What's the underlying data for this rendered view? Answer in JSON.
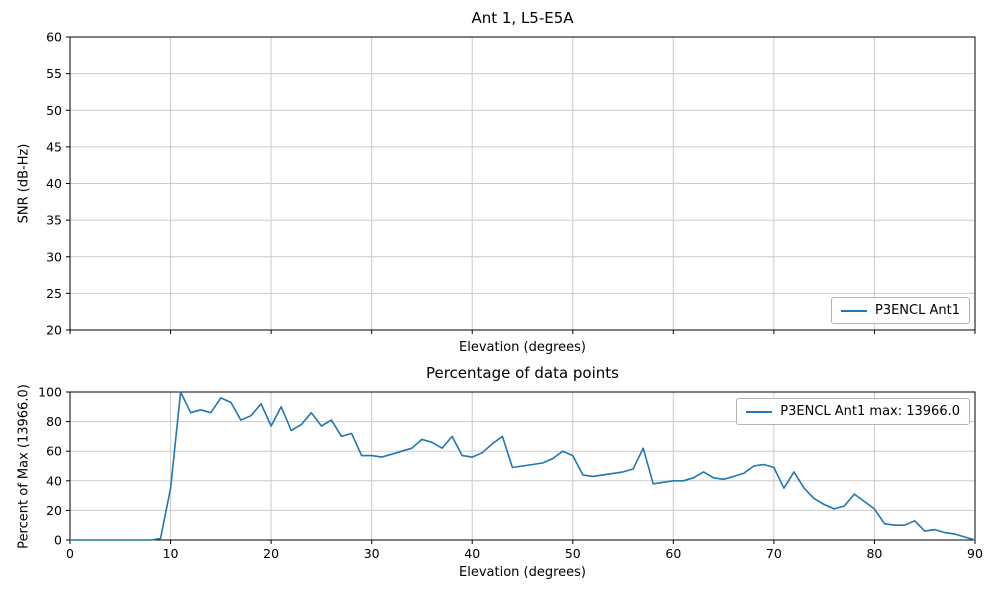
{
  "figure": {
    "background": "#ffffff",
    "axes_edge_color": "#000000",
    "grid_color": "#cccccc",
    "accent_color": "#1f77b4"
  },
  "chart_data": [
    {
      "type": "line",
      "title": "Ant 1, L5-E5A",
      "xlabel": "Elevation (degrees)",
      "ylabel": "SNR (dB-Hz)",
      "xlim": [
        0,
        90
      ],
      "ylim": [
        20,
        60
      ],
      "xticks": [
        0,
        10,
        20,
        30,
        40,
        50,
        60,
        70,
        80,
        90
      ],
      "yticks": [
        20,
        25,
        30,
        35,
        40,
        45,
        50,
        55,
        60
      ],
      "show_xticklabels": false,
      "grid": true,
      "legend": {
        "position": "lower right",
        "entries": [
          {
            "label": "P3ENCL Ant1",
            "color": "#1f77b4"
          }
        ]
      },
      "series": [
        {
          "name": "P3ENCL Ant1",
          "color": "#1f77b4",
          "x": [],
          "y": []
        }
      ]
    },
    {
      "type": "line",
      "title": "Percentage of data points",
      "xlabel": "Elevation (degrees)",
      "ylabel": "Percent of Max (13966.0)",
      "max_value": "13966.0",
      "xlim": [
        0,
        90
      ],
      "ylim": [
        0,
        100
      ],
      "xticks": [
        0,
        10,
        20,
        30,
        40,
        50,
        60,
        70,
        80,
        90
      ],
      "yticks": [
        0,
        20,
        40,
        60,
        80,
        100
      ],
      "show_xticklabels": true,
      "grid": true,
      "legend": {
        "position": "upper right",
        "entries": [
          {
            "label": "P3ENCL Ant1 max: 13966.0",
            "color": "#1f77b4"
          }
        ]
      },
      "series": [
        {
          "name": "P3ENCL Ant1",
          "color": "#1f77b4",
          "x": [
            0,
            1,
            2,
            3,
            4,
            5,
            6,
            7,
            8,
            9,
            10,
            11,
            12,
            13,
            14,
            15,
            16,
            17,
            18,
            19,
            20,
            21,
            22,
            23,
            24,
            25,
            26,
            27,
            28,
            29,
            30,
            31,
            32,
            33,
            34,
            35,
            36,
            37,
            38,
            39,
            40,
            41,
            42,
            43,
            44,
            45,
            46,
            47,
            48,
            49,
            50,
            51,
            52,
            53,
            54,
            55,
            56,
            57,
            58,
            59,
            60,
            61,
            62,
            63,
            64,
            65,
            66,
            67,
            68,
            69,
            70,
            71,
            72,
            73,
            74,
            75,
            76,
            77,
            78,
            79,
            80,
            81,
            82,
            83,
            84,
            85,
            86,
            87,
            88,
            89,
            90
          ],
          "y": [
            0,
            0,
            0,
            0,
            0,
            0,
            0,
            0,
            0,
            1,
            35,
            100,
            86,
            88,
            86,
            96,
            93,
            81,
            84,
            92,
            77,
            90,
            74,
            78,
            86,
            77,
            81,
            70,
            72,
            57,
            57,
            56,
            58,
            60,
            62,
            68,
            66,
            62,
            70,
            57,
            56,
            59,
            65,
            70,
            49,
            50,
            51,
            52,
            55,
            60,
            57,
            44,
            43,
            44,
            45,
            46,
            48,
            62,
            38,
            39,
            40,
            40,
            42,
            46,
            42,
            41,
            43,
            45,
            50,
            51,
            49,
            35,
            46,
            35,
            28,
            24,
            21,
            23,
            31,
            26,
            21,
            11,
            10,
            10,
            13,
            6,
            7,
            5,
            4,
            2,
            0
          ]
        }
      ]
    }
  ]
}
